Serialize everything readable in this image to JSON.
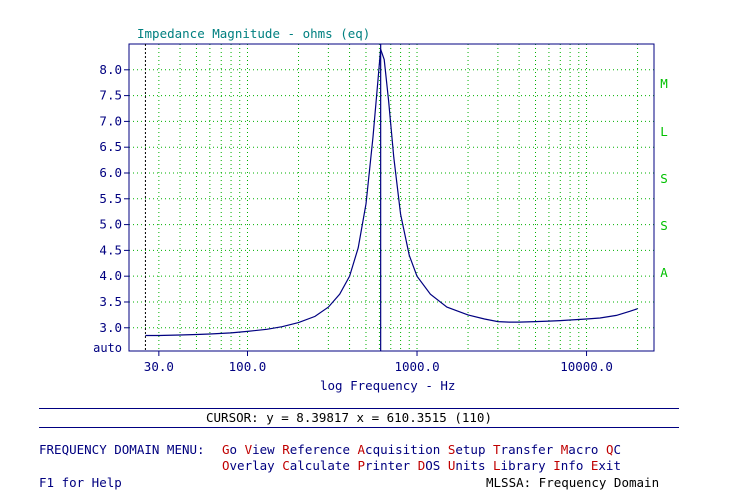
{
  "chart_data": {
    "type": "line",
    "title": "Impedance Magnitude - ohms (eq)",
    "xlabel": "log Frequency - Hz",
    "ylabel": "",
    "xscale": "log",
    "xlim": [
      20,
      25000
    ],
    "ylim": [
      2.55,
      8.5
    ],
    "y_ticks": [
      "8.0",
      "7.5",
      "7.0",
      "6.5",
      "6.0",
      "5.5",
      "5.0",
      "4.5",
      "4.0",
      "3.5",
      "3.0"
    ],
    "y_bottom_label": "auto",
    "x_ticks": [
      {
        "value": 30,
        "label": "30.0"
      },
      {
        "value": 100,
        "label": "100.0"
      },
      {
        "value": 1000,
        "label": "1000.0"
      },
      {
        "value": 10000,
        "label": "10000.0"
      }
    ],
    "grid": true,
    "cursor": {
      "x": 610.3515,
      "y": 8.39817
    },
    "series": [
      {
        "color": "#000080",
        "points": [
          [
            25,
            2.85
          ],
          [
            30,
            2.85
          ],
          [
            40,
            2.86
          ],
          [
            50,
            2.87
          ],
          [
            60,
            2.88
          ],
          [
            80,
            2.9
          ],
          [
            100,
            2.93
          ],
          [
            130,
            2.97
          ],
          [
            160,
            3.02
          ],
          [
            200,
            3.1
          ],
          [
            250,
            3.22
          ],
          [
            300,
            3.4
          ],
          [
            350,
            3.65
          ],
          [
            400,
            4.0
          ],
          [
            450,
            4.55
          ],
          [
            500,
            5.4
          ],
          [
            550,
            6.7
          ],
          [
            590,
            7.85
          ],
          [
            610,
            8.4
          ],
          [
            640,
            8.2
          ],
          [
            680,
            7.4
          ],
          [
            730,
            6.3
          ],
          [
            800,
            5.2
          ],
          [
            900,
            4.4
          ],
          [
            1000,
            4.0
          ],
          [
            1200,
            3.65
          ],
          [
            1500,
            3.4
          ],
          [
            2000,
            3.25
          ],
          [
            2500,
            3.17
          ],
          [
            3000,
            3.12
          ],
          [
            3500,
            3.11
          ],
          [
            4000,
            3.11
          ],
          [
            5000,
            3.12
          ],
          [
            6000,
            3.13
          ],
          [
            7000,
            3.14
          ],
          [
            8000,
            3.15
          ],
          [
            10000,
            3.17
          ],
          [
            12000,
            3.19
          ],
          [
            15000,
            3.24
          ],
          [
            18000,
            3.32
          ],
          [
            20000,
            3.37
          ]
        ]
      }
    ]
  },
  "app_badge": [
    "M",
    "L",
    "S",
    "S",
    "A"
  ],
  "cursor_readout": "CURSOR: y = 8.39817 x = 610.3515 (110)",
  "menu": {
    "label": "FREQUENCY DOMAIN MENU:",
    "row1": [
      {
        "hot": "G",
        "rest": "o"
      },
      {
        "hot": "V",
        "rest": "iew"
      },
      {
        "hot": "R",
        "rest": "eference"
      },
      {
        "hot": "A",
        "rest": "cquisition"
      },
      {
        "hot": "S",
        "rest": "etup"
      },
      {
        "hot": "T",
        "rest": "ransfer"
      },
      {
        "hot": "M",
        "rest": "acro"
      },
      {
        "hot": "Q",
        "rest": "C"
      }
    ],
    "row2": [
      {
        "hot": "O",
        "rest": "verlay"
      },
      {
        "hot": "C",
        "rest": "alculate"
      },
      {
        "hot": "P",
        "rest": "rinter"
      },
      {
        "hot": "D",
        "rest": "OS"
      },
      {
        "hot": "U",
        "rest": "nits"
      },
      {
        "hot": "L",
        "rest": "ibrary"
      },
      {
        "hot": "I",
        "rest": "nfo"
      },
      {
        "hot": "E",
        "rest": "xit"
      }
    ]
  },
  "help_text": "F1 for Help",
  "status_text": "MLSSA: Frequency Domain"
}
